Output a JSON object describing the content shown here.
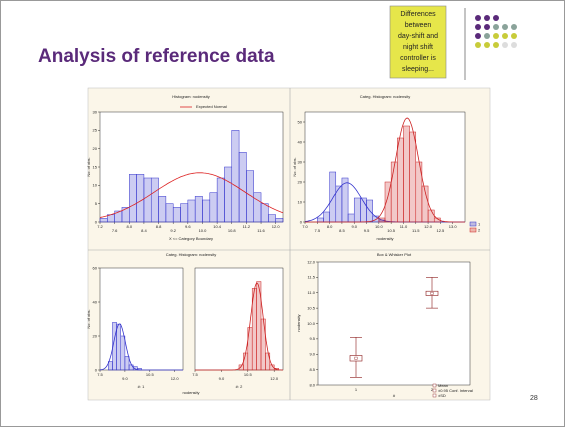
{
  "title": "Analysis of reference data",
  "callout": [
    "Differences",
    "between",
    "day-shift and",
    "night shift",
    "controller is",
    "sleeping..."
  ],
  "page_number": "28",
  "hist1": {
    "heading": "Histogram: nodensity",
    "legend": "Expected Normal",
    "xlabel": "X <= Category Boundary",
    "ylabel": "No. of obs.",
    "xlim": [
      7.2,
      12.2
    ],
    "ylim": [
      0,
      30
    ],
    "yticks": [
      0,
      5,
      10,
      15,
      20,
      25,
      30
    ],
    "xticks": [
      7.2,
      7.6,
      {
        "value": 8,
        "label": "8.0"
      },
      8.4,
      8.8,
      9.2,
      9.6,
      {
        "value": 10,
        "label": "10.0"
      },
      10.4,
      10.8,
      11.2,
      11.6,
      {
        "value": 12,
        "label": "12.0"
      }
    ],
    "series": [
      {
        "color": "#3333cc",
        "bins": [
          7.2,
          7.4,
          7.6,
          7.8,
          8,
          8.2,
          8.4,
          8.6,
          8.8,
          9,
          9.2,
          9.4,
          9.6,
          9.8,
          10,
          10.2,
          10.4,
          10.6,
          10.8,
          11,
          11.2,
          11.4,
          11.6,
          11.8,
          12,
          12.2
        ],
        "values": [
          1,
          2,
          3,
          4,
          13,
          13,
          12,
          12,
          7,
          5,
          4,
          5,
          6,
          7,
          6,
          8,
          12,
          15,
          25,
          19,
          14,
          8,
          5,
          2,
          1
        ]
      }
    ]
  },
  "hist2": {
    "heading": "Categ. Histogram: nodensity",
    "xlabel": "nodensity",
    "ylabel": "No. of obs.",
    "legend": [
      "1",
      "2"
    ],
    "xlim": [
      7,
      13.5
    ],
    "ylim": [
      0,
      55
    ],
    "yticks": [
      0,
      10,
      20,
      30,
      40,
      50
    ],
    "xticks": [
      {
        "value": 7,
        "label": "7.0"
      },
      7.5,
      {
        "value": 8,
        "label": "8.0"
      },
      8.5,
      {
        "value": 9,
        "label": "9.0"
      },
      9.5,
      {
        "value": 10,
        "label": "10.0"
      },
      10.5,
      {
        "value": 11,
        "label": "11.0"
      },
      11.5,
      {
        "value": 12,
        "label": "12.0"
      },
      12.5,
      {
        "value": 13,
        "label": "13.0"
      }
    ],
    "series": [
      {
        "color": "#3333cc",
        "bins": [
          7.5,
          7.75,
          8,
          8.25,
          8.5,
          8.75,
          9,
          9.25,
          9.5,
          9.75,
          10,
          10.25,
          10.5
        ],
        "values": [
          2,
          5,
          25,
          18,
          22,
          4,
          12,
          12,
          11,
          3,
          1,
          0
        ]
      },
      {
        "color": "#cc2222",
        "bins": [
          10,
          10.25,
          10.5,
          10.75,
          11,
          11.25,
          11.5,
          11.75,
          12,
          12.25,
          12.5
        ],
        "values": [
          2,
          20,
          30,
          42,
          48,
          45,
          30,
          18,
          6,
          2
        ]
      }
    ]
  },
  "hist3": {
    "heading": "Categ. Histogram: nodensity",
    "xlabel": "nodensity",
    "ylabel": "No. of obs.",
    "panel_labels": [
      "#: 1",
      "#: 2"
    ],
    "xlim": [
      7.5,
      12.5
    ],
    "ylim": [
      0,
      60
    ],
    "yticks": [
      0,
      20,
      40,
      60
    ],
    "xticks": [
      7.5,
      {
        "value": 9,
        "label": "9.0"
      },
      10.5,
      {
        "value": 12,
        "label": "12.0"
      }
    ],
    "series": [
      {
        "color": "#3333cc",
        "bins": [
          8,
          8.25,
          8.5,
          8.75,
          9,
          9.25,
          9.5,
          9.75,
          10,
          10.25
        ],
        "values": [
          5,
          28,
          27,
          20,
          8,
          3,
          2,
          1,
          0
        ]
      },
      {
        "color": "#cc2222",
        "bins": [
          10,
          10.25,
          10.5,
          10.75,
          11,
          11.25,
          11.5,
          11.75,
          12,
          12.25
        ],
        "values": [
          3,
          10,
          25,
          48,
          52,
          30,
          10,
          3,
          1
        ]
      }
    ]
  },
  "box": {
    "heading": "Box & Whisker Plot",
    "ylabel": "nodensity",
    "xlabel": "#",
    "categories": [
      "1",
      "2"
    ],
    "ylim": [
      8,
      12
    ],
    "yticks": [
      {
        "value": 8,
        "label": "8.0"
      },
      8.5,
      {
        "value": 9,
        "label": "9.0"
      },
      9.5,
      {
        "value": 10,
        "label": "10.0"
      },
      10.5,
      {
        "value": 11,
        "label": "11.0"
      },
      11.5,
      {
        "value": 12,
        "label": "12.0"
      }
    ],
    "legend": [
      "Mean",
      "±0.95 Conf. Interval",
      "±SD"
    ],
    "mean": [
      8.87,
      10.98
    ],
    "box_low": [
      8.78,
      10.91
    ],
    "box_high": [
      8.96,
      11.05
    ],
    "whisker_low": [
      8.25,
      10.5
    ],
    "whisker_high": [
      9.55,
      11.5
    ]
  }
}
